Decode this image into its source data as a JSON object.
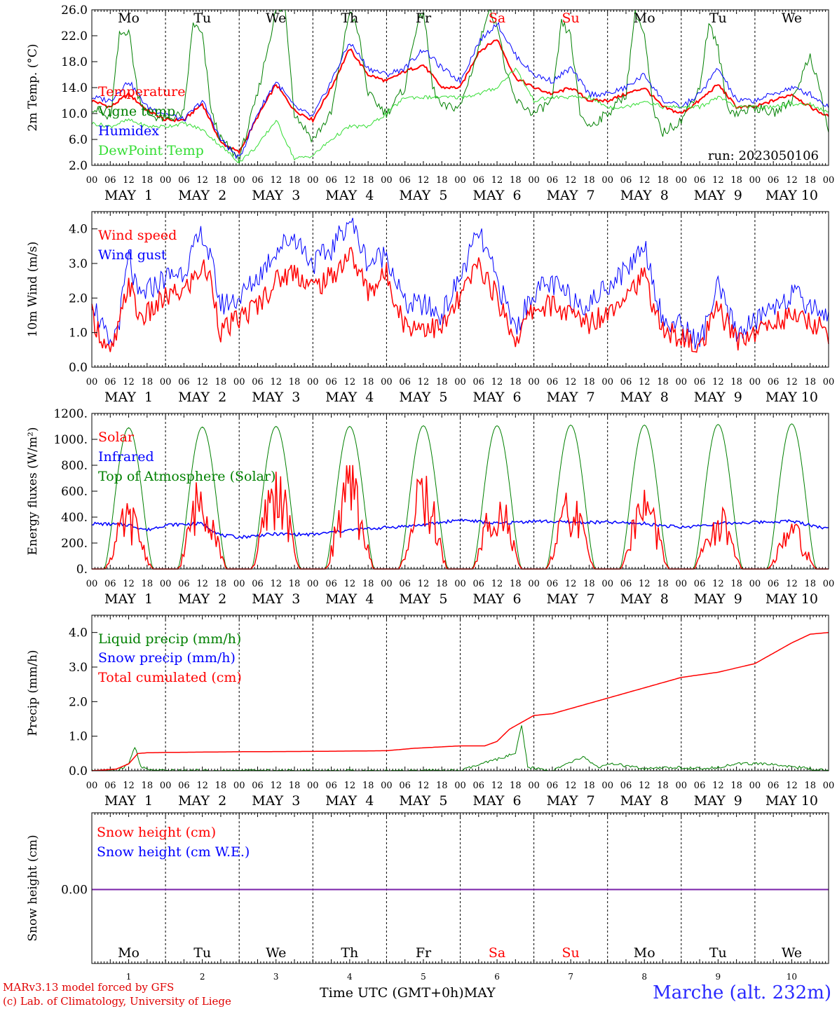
{
  "colors": {
    "red": "#ff0000",
    "green": "#008000",
    "blue": "#0000ff",
    "lightgreen": "#33dd33",
    "purple": "#7a22aa",
    "weekend": "#ff0000"
  },
  "days": {
    "names": [
      "Mo",
      "Tu",
      "We",
      "Th",
      "Fr",
      "Sa",
      "Su",
      "Mo",
      "Tu",
      "We"
    ],
    "weekend": [
      false,
      false,
      false,
      false,
      false,
      true,
      true,
      false,
      false,
      false
    ],
    "date_labels": [
      "MAY  1",
      "MAY  2",
      "MAY  3",
      "MAY  4",
      "MAY  5",
      "MAY  6",
      "MAY  7",
      "MAY  8",
      "MAY  9",
      "MAY 10"
    ],
    "numbers": [
      "1",
      "2",
      "3",
      "4",
      "5",
      "6",
      "7",
      "8",
      "9",
      "10"
    ],
    "hours": [
      "00",
      "06",
      "12",
      "18"
    ],
    "end_hour": "00"
  },
  "footer": {
    "credit_line1": "MARv3.13 model forced by GFS",
    "credit_line2": "(c) Lab. of Climatology, University of Liege",
    "xaxis_title": "Time UTC (GMT+0h)MAY",
    "station": "Marche (alt. 232m)"
  },
  "chart_data": [
    {
      "type": "line",
      "ylabel": "2m Temp. (°C)",
      "ylim": [
        2,
        26
      ],
      "ytick_labels": [
        "26.0",
        "22.0",
        "18.0",
        "14.0",
        "10.0",
        "6.0",
        "2.0"
      ],
      "annotation": "run: 2023050106",
      "x_unit": "hours since May 1 00 UTC",
      "series": [
        {
          "name": "Temperature",
          "color": "#ff0000",
          "x": [
            0,
            6,
            12,
            18,
            24,
            30,
            36,
            42,
            48,
            54,
            60,
            66,
            72,
            78,
            84,
            90,
            96,
            102,
            108,
            114,
            120,
            126,
            132,
            138,
            144,
            150,
            156,
            162,
            168,
            174,
            180,
            186,
            192,
            198,
            204,
            210,
            216,
            222,
            228,
            234,
            240
          ],
          "y": [
            12,
            11,
            13,
            10.5,
            9,
            9,
            11.5,
            5.5,
            4,
            9.5,
            14.5,
            10.5,
            9,
            14,
            20,
            16,
            15,
            16.5,
            17.5,
            14,
            14,
            19.5,
            21.5,
            15.5,
            14,
            13,
            14,
            12,
            12,
            13,
            14,
            11,
            10,
            12,
            14.5,
            11,
            11,
            12,
            13,
            11,
            9.5
          ]
        },
        {
          "name": "Vigne temp",
          "color": "#008000",
          "x": [
            0,
            6,
            9,
            12,
            15,
            18,
            24,
            30,
            33,
            36,
            39,
            42,
            48,
            54,
            60,
            63,
            66,
            72,
            78,
            84,
            87,
            90,
            96,
            102,
            105,
            108,
            111,
            114,
            120,
            126,
            129,
            132,
            135,
            138,
            144,
            150,
            153,
            156,
            159,
            162,
            168,
            174,
            177,
            180,
            183,
            186,
            192,
            198,
            201,
            204,
            207,
            210,
            216,
            222,
            228,
            234,
            237,
            240
          ],
          "y": [
            11,
            9,
            22,
            23,
            13,
            10,
            9,
            10,
            24,
            22,
            10,
            6,
            3,
            13,
            26,
            26,
            10,
            6,
            10,
            26,
            22,
            13,
            10,
            14,
            22,
            26,
            14,
            11,
            11,
            20,
            26,
            24,
            16,
            12,
            10,
            12,
            24,
            22,
            10,
            8,
            10,
            13,
            26,
            22,
            10,
            7,
            9,
            14,
            24,
            20,
            11,
            10,
            11,
            10,
            12,
            19,
            14,
            7
          ]
        },
        {
          "name": "Humidex",
          "color": "#0000ff",
          "x": [
            0,
            6,
            12,
            18,
            24,
            30,
            36,
            42,
            48,
            54,
            60,
            66,
            72,
            78,
            84,
            90,
            96,
            102,
            108,
            114,
            120,
            126,
            132,
            138,
            144,
            150,
            156,
            162,
            168,
            174,
            180,
            186,
            192,
            198,
            204,
            210,
            216,
            222,
            228,
            234,
            240
          ],
          "y": [
            12.5,
            12,
            15,
            11,
            10,
            9,
            12,
            6,
            3,
            10,
            15,
            11,
            9.5,
            15,
            21,
            17,
            16,
            17,
            20,
            17,
            15,
            21,
            24,
            19,
            16,
            15,
            17,
            13,
            13,
            14,
            16,
            12,
            11,
            13,
            17,
            12,
            12,
            13,
            14,
            13,
            11
          ]
        },
        {
          "name": "DewPoint Temp",
          "color": "#33dd33",
          "x": [
            0,
            6,
            12,
            18,
            24,
            30,
            36,
            42,
            48,
            54,
            60,
            66,
            72,
            78,
            84,
            90,
            96,
            102,
            108,
            114,
            120,
            126,
            132,
            138,
            144,
            150,
            156,
            162,
            168,
            174,
            180,
            186,
            192,
            198,
            204,
            210,
            216,
            222,
            228,
            234,
            240
          ],
          "y": [
            8.5,
            8,
            9,
            8,
            8,
            8.5,
            7.5,
            5,
            2.5,
            5,
            9,
            3,
            3.5,
            6,
            8,
            8,
            10,
            12.5,
            12.5,
            12.5,
            12.5,
            13,
            14,
            17,
            12,
            12.5,
            12.5,
            12.5,
            11,
            11,
            12,
            11,
            11,
            11,
            12.5,
            11,
            11,
            11,
            11.5,
            11.5,
            10
          ]
        }
      ]
    },
    {
      "type": "line",
      "ylabel": "10m Wind (m/s)",
      "ylim": [
        0,
        4.5
      ],
      "ytick_labels": [
        "4.0",
        "3.0",
        "2.0",
        "1.0",
        "0.0"
      ],
      "series": [
        {
          "name": "Wind speed",
          "color": "#ff0000",
          "x": [
            0,
            6,
            9,
            12,
            15,
            18,
            24,
            30,
            36,
            39,
            42,
            48,
            54,
            60,
            66,
            72,
            78,
            84,
            90,
            96,
            102,
            108,
            114,
            120,
            126,
            132,
            138,
            144,
            150,
            156,
            162,
            168,
            174,
            180,
            186,
            192,
            198,
            204,
            210,
            216,
            222,
            228,
            234,
            240
          ],
          "y": [
            1.5,
            0.3,
            1.2,
            2.5,
            1.5,
            1.5,
            2,
            2.2,
            2.9,
            2.5,
            1.0,
            1.4,
            1.8,
            2.5,
            2.8,
            2.3,
            2.6,
            3.3,
            2.2,
            2.7,
            1.2,
            1.2,
            1.1,
            2,
            3,
            2,
            0.8,
            1.7,
            1.8,
            1.5,
            1.3,
            1.6,
            2.2,
            2.6,
            1,
            0.9,
            0.5,
            1.7,
            0.8,
            1,
            1.3,
            1.5,
            1.3,
            1
          ]
        },
        {
          "name": "Wind gust",
          "color": "#0000ff",
          "x": [
            0,
            6,
            9,
            12,
            15,
            18,
            24,
            30,
            36,
            39,
            42,
            48,
            54,
            60,
            66,
            72,
            78,
            84,
            90,
            96,
            102,
            108,
            114,
            120,
            126,
            132,
            138,
            144,
            150,
            156,
            162,
            168,
            174,
            180,
            186,
            192,
            198,
            204,
            210,
            216,
            222,
            228,
            234,
            240
          ],
          "y": [
            2,
            0.5,
            1.4,
            3.2,
            2,
            2.2,
            2.6,
            2.8,
            3.9,
            3.0,
            1.8,
            2,
            2.6,
            3.4,
            3.8,
            3,
            3.4,
            4.3,
            3,
            3.3,
            1.8,
            1.8,
            1.5,
            2.6,
            3.9,
            2.5,
            1.1,
            2.2,
            2.4,
            2,
            1.8,
            2.4,
            2.8,
            3.6,
            1.3,
            1.2,
            0.7,
            2.3,
            1.0,
            1.3,
            1.8,
            2.1,
            1.8,
            1.5
          ]
        }
      ]
    },
    {
      "type": "line",
      "ylabel": "Energy fluxes (W/m²)",
      "ylim": [
        0,
        1200
      ],
      "ytick_labels": [
        "1200.",
        "1000.",
        "800.",
        "600.",
        "400.",
        "200.",
        "0."
      ],
      "series": [
        {
          "name": "Solar",
          "color": "#ff0000",
          "daily_peak": [
            530,
            790,
            840,
            840,
            780,
            700,
            640,
            690,
            510,
            410
          ]
        },
        {
          "name": "Infrared",
          "color": "#0000ff",
          "x": [
            0,
            12,
            18,
            24,
            36,
            42,
            48,
            60,
            72,
            84,
            96,
            108,
            114,
            120,
            132,
            144,
            156,
            168,
            180,
            192,
            204,
            216,
            228,
            240
          ],
          "y": [
            350,
            340,
            300,
            340,
            350,
            260,
            245,
            270,
            265,
            300,
            320,
            340,
            360,
            380,
            350,
            370,
            360,
            360,
            350,
            320,
            350,
            360,
            370,
            310
          ]
        },
        {
          "name": "Top of Atmosphere (Solar)",
          "color": "#008000",
          "daily_peak": [
            1090,
            1095,
            1100,
            1100,
            1105,
            1105,
            1110,
            1110,
            1115,
            1120
          ]
        }
      ]
    },
    {
      "type": "line",
      "ylabel": "Precip (mm/h)",
      "ylim": [
        0,
        4.5
      ],
      "ytick_labels": [
        "4.0",
        "3.0",
        "2.0",
        "1.0",
        "0.0"
      ],
      "series": [
        {
          "name": "Liquid precip (mm/h)",
          "color": "#008000",
          "x": [
            0,
            8,
            12,
            14,
            16,
            20,
            120,
            138,
            140,
            142,
            150,
            160,
            165,
            170,
            180,
            190,
            200,
            210,
            220,
            230,
            240
          ],
          "y": [
            0,
            0,
            0.2,
            0.7,
            0.1,
            0,
            0,
            0.5,
            1.3,
            0.1,
            0,
            0.4,
            0.1,
            0.2,
            0.05,
            0.1,
            0.05,
            0.2,
            0.2,
            0.1,
            0
          ]
        },
        {
          "name": "Snow precip (mm/h)",
          "color": "#0000ff",
          "x": [
            0,
            240
          ],
          "y": [
            0,
            0
          ]
        },
        {
          "name": "Total cumulated (cm)",
          "color": "#ff0000",
          "x": [
            0,
            8,
            12,
            15,
            18,
            24,
            48,
            72,
            96,
            105,
            120,
            128,
            132,
            136,
            140,
            141,
            144,
            150,
            156,
            168,
            180,
            192,
            204,
            216,
            222,
            228,
            234,
            240
          ],
          "y": [
            0,
            0.05,
            0.2,
            0.5,
            0.52,
            0.53,
            0.55,
            0.56,
            0.58,
            0.65,
            0.72,
            0.72,
            0.85,
            1.2,
            1.4,
            1.45,
            1.6,
            1.65,
            1.8,
            2.1,
            2.4,
            2.7,
            2.85,
            3.1,
            3.4,
            3.7,
            3.95,
            4.0
          ]
        }
      ]
    },
    {
      "type": "line",
      "ylabel": "Snow height (cm)",
      "ytick_labels": [
        "0.00"
      ],
      "series": [
        {
          "name": "Snow height (cm)",
          "color": "#ff0000",
          "x": [
            0,
            240
          ],
          "y": [
            0,
            0
          ]
        },
        {
          "name": "Snow height (cm W.E.)",
          "color": "#0000ff",
          "x": [
            0,
            240
          ],
          "y": [
            0,
            0
          ]
        }
      ]
    }
  ]
}
